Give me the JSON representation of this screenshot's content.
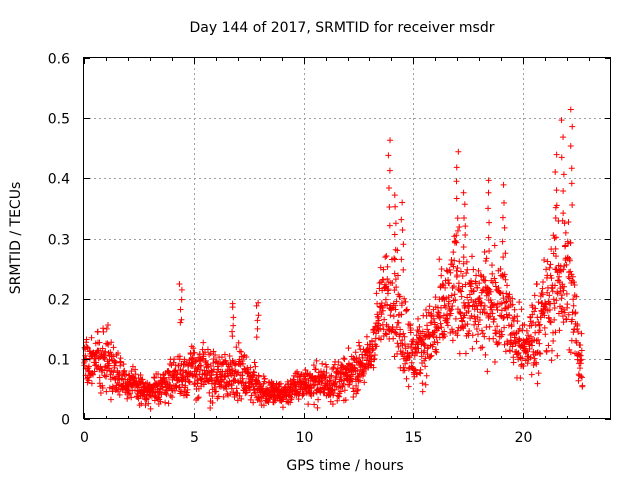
{
  "chart_data": {
    "type": "scatter",
    "title": "Day 144 of 2017, SRMTID for receiver msdr",
    "xlabel": "GPS time / hours",
    "ylabel": "SRMTID / TECUs",
    "xlim": [
      0,
      24
    ],
    "ylim": [
      0,
      0.6
    ],
    "x_ticks": [
      0,
      5,
      10,
      15,
      20
    ],
    "x_tick_labels": [
      "0",
      "5",
      "10",
      "15",
      "20"
    ],
    "y_ticks": [
      0,
      0.1,
      0.2,
      0.3,
      0.4,
      0.5,
      0.6
    ],
    "y_tick_labels": [
      "0",
      "0.1",
      "0.2",
      "0.3",
      "0.4",
      "0.5",
      "0.6"
    ],
    "grid": true,
    "marker": "+",
    "color": "#ff0000",
    "series": [
      {
        "name": "SRMTID",
        "envelope": [
          {
            "x": 0.0,
            "center": 0.09,
            "spread": 0.07
          },
          {
            "x": 1.0,
            "center": 0.1,
            "spread": 0.08
          },
          {
            "x": 2.0,
            "center": 0.06,
            "spread": 0.04
          },
          {
            "x": 3.0,
            "center": 0.04,
            "spread": 0.03
          },
          {
            "x": 4.0,
            "center": 0.07,
            "spread": 0.05
          },
          {
            "x": 5.0,
            "center": 0.08,
            "spread": 0.07
          },
          {
            "x": 6.0,
            "center": 0.07,
            "spread": 0.06
          },
          {
            "x": 7.0,
            "center": 0.08,
            "spread": 0.06
          },
          {
            "x": 8.0,
            "center": 0.05,
            "spread": 0.04
          },
          {
            "x": 9.0,
            "center": 0.04,
            "spread": 0.03
          },
          {
            "x": 10.0,
            "center": 0.06,
            "spread": 0.04
          },
          {
            "x": 11.0,
            "center": 0.06,
            "spread": 0.05
          },
          {
            "x": 12.0,
            "center": 0.07,
            "spread": 0.05
          },
          {
            "x": 13.0,
            "center": 0.1,
            "spread": 0.06
          },
          {
            "x": 13.8,
            "center": 0.22,
            "spread": 0.12
          },
          {
            "x": 14.5,
            "center": 0.15,
            "spread": 0.13
          },
          {
            "x": 15.0,
            "center": 0.1,
            "spread": 0.07
          },
          {
            "x": 16.0,
            "center": 0.15,
            "spread": 0.1
          },
          {
            "x": 17.0,
            "center": 0.22,
            "spread": 0.15
          },
          {
            "x": 18.0,
            "center": 0.18,
            "spread": 0.12
          },
          {
            "x": 19.0,
            "center": 0.2,
            "spread": 0.12
          },
          {
            "x": 20.0,
            "center": 0.11,
            "spread": 0.08
          },
          {
            "x": 21.0,
            "center": 0.18,
            "spread": 0.13
          },
          {
            "x": 22.0,
            "center": 0.25,
            "spread": 0.2
          },
          {
            "x": 22.6,
            "center": 0.1,
            "spread": 0.08
          }
        ],
        "peaks": [
          {
            "x": 4.4,
            "y": 0.23
          },
          {
            "x": 6.8,
            "y": 0.2
          },
          {
            "x": 7.9,
            "y": 0.2
          },
          {
            "x": 13.9,
            "y": 0.47
          },
          {
            "x": 14.2,
            "y": 0.38
          },
          {
            "x": 14.5,
            "y": 0.36
          },
          {
            "x": 17.0,
            "y": 0.45
          },
          {
            "x": 17.3,
            "y": 0.38
          },
          {
            "x": 18.4,
            "y": 0.4
          },
          {
            "x": 19.1,
            "y": 0.39
          },
          {
            "x": 21.5,
            "y": 0.44
          },
          {
            "x": 21.8,
            "y": 0.5
          },
          {
            "x": 22.2,
            "y": 0.52
          }
        ],
        "x_range": [
          0.0,
          22.7
        ],
        "point_count": 2200
      }
    ]
  }
}
